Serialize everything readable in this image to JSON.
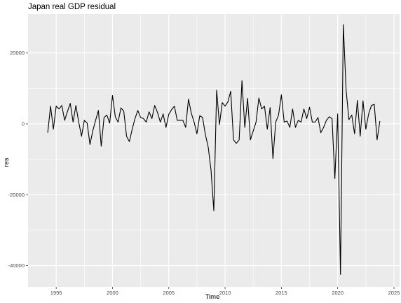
{
  "chart_data": {
    "type": "line",
    "title": "Japan real GDP residual",
    "xlabel": "Time",
    "ylabel": "res",
    "xlim": [
      1992.5,
      2025.5
    ],
    "ylim": [
      -46000,
      31000
    ],
    "x_ticks": [
      1995,
      2000,
      2005,
      2010,
      2015,
      2020,
      2025
    ],
    "x_tick_labels": [
      "1995",
      "2000",
      "2005",
      "2010",
      "2015",
      "2020",
      "2025"
    ],
    "y_ticks": [
      -40000,
      -20000,
      0,
      20000
    ],
    "y_tick_labels": [
      "-40000",
      "-20000",
      "0",
      "20000"
    ],
    "grid": true,
    "legend": "none",
    "x_start": 1994.25,
    "x_step": 0.25,
    "series": [
      {
        "values": [
          -2500,
          5000,
          -1500,
          5000,
          4200,
          5200,
          1000,
          3500,
          5800,
          500,
          5200,
          500,
          -3500,
          1000,
          200,
          -5800,
          -2000,
          1000,
          3800,
          -6300,
          1800,
          2500,
          200,
          8000,
          2000,
          500,
          4500,
          3600,
          -3500,
          -5000,
          -1500,
          1500,
          3800,
          1800,
          1500,
          500,
          3400,
          1500,
          5200,
          3200,
          500,
          2800,
          -1000,
          2700,
          4000,
          5000,
          1000,
          1000,
          1000,
          -1000,
          7000,
          3000,
          500,
          -2800,
          2300,
          1800,
          -3000,
          -6500,
          -13000,
          -24500,
          9500,
          -200,
          6000,
          5000,
          6200,
          9200,
          -4500,
          -5500,
          -4500,
          12200,
          -1000,
          7200,
          -4500,
          -2000,
          500,
          7300,
          4200,
          5000,
          -1500,
          4600,
          -9800,
          500,
          2500,
          8200,
          500,
          800,
          -1000,
          4200,
          -1000,
          1000,
          500,
          4200,
          1500,
          4700,
          500,
          500,
          1800,
          -2500,
          -1000,
          1000,
          2000,
          1500,
          -15500,
          2800,
          -42500,
          28000,
          9500,
          1200,
          2500,
          -2800,
          6600,
          -3500,
          6500,
          -1500,
          2800,
          5200,
          5500,
          -4500,
          800
        ]
      }
    ]
  }
}
